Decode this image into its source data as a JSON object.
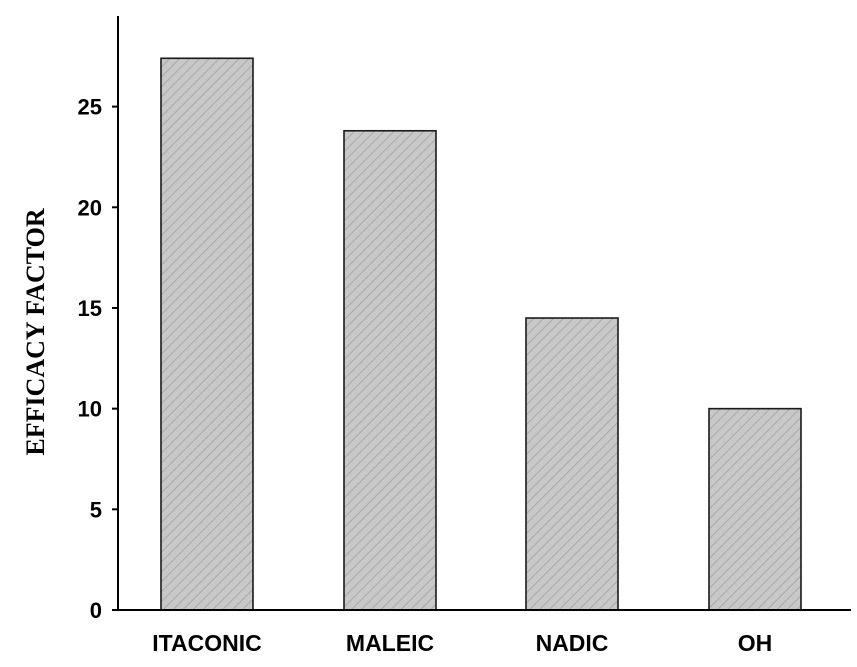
{
  "chart_data": {
    "type": "bar",
    "title": "",
    "xlabel": "",
    "ylabel": "EFFICACY FACTOR",
    "categories": [
      "ITACONIC",
      "MALEIC",
      "NADIC",
      "OH"
    ],
    "values": [
      27.4,
      23.8,
      14.5,
      10.0
    ],
    "ylim": [
      0,
      29.5
    ],
    "yticks": [
      "0",
      "5",
      "10",
      "15",
      "20",
      "25"
    ],
    "grid": false,
    "legend": "none",
    "bar_fill": "#c8c8c8",
    "bar_hatch": "#a9a9a9",
    "bar_stroke": "#1a1a1a",
    "axis_color": "#000000"
  }
}
